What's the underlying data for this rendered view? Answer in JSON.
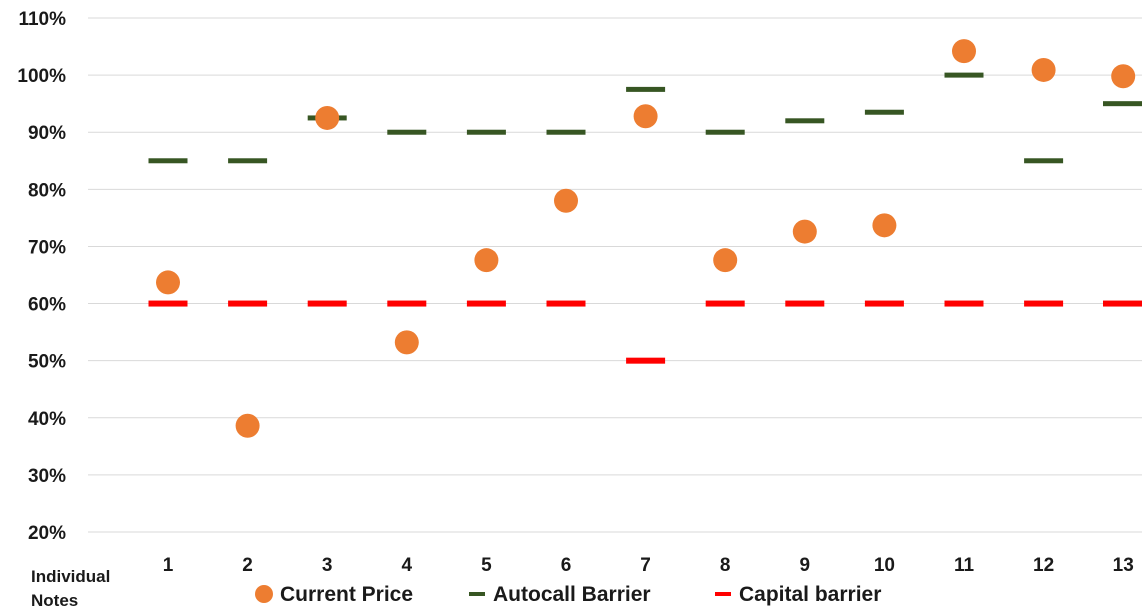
{
  "chart_data": {
    "type": "scatter",
    "xlabel": "Individual Notes",
    "ylabel": "",
    "categories": [
      "1",
      "2",
      "3",
      "4",
      "5",
      "6",
      "7",
      "8",
      "9",
      "10",
      "11",
      "12",
      "13"
    ],
    "y_ticks": [
      "20%",
      "30%",
      "40%",
      "50%",
      "60%",
      "70%",
      "80%",
      "90%",
      "100%",
      "110%"
    ],
    "ylim": [
      20,
      110
    ],
    "y_unit": "%",
    "grid": true,
    "legend_position": "bottom",
    "series": [
      {
        "name": "Current Price",
        "marker": "circle",
        "color": "#ED7D31",
        "values": [
          63.7,
          38.6,
          92.5,
          53.2,
          67.6,
          78.0,
          92.8,
          67.6,
          72.6,
          73.7,
          104.2,
          100.9,
          99.8
        ]
      },
      {
        "name": "Autocall Barrier",
        "marker": "dash",
        "color": "#375623",
        "values": [
          85,
          85,
          92.5,
          90,
          90,
          90,
          97.5,
          90,
          92,
          93.5,
          100,
          85,
          95
        ]
      },
      {
        "name": "Capital barrier",
        "marker": "dash",
        "color": "#FF0000",
        "values": [
          60,
          60,
          60,
          60,
          60,
          60,
          50,
          60,
          60,
          60,
          60,
          60,
          60
        ]
      }
    ]
  }
}
